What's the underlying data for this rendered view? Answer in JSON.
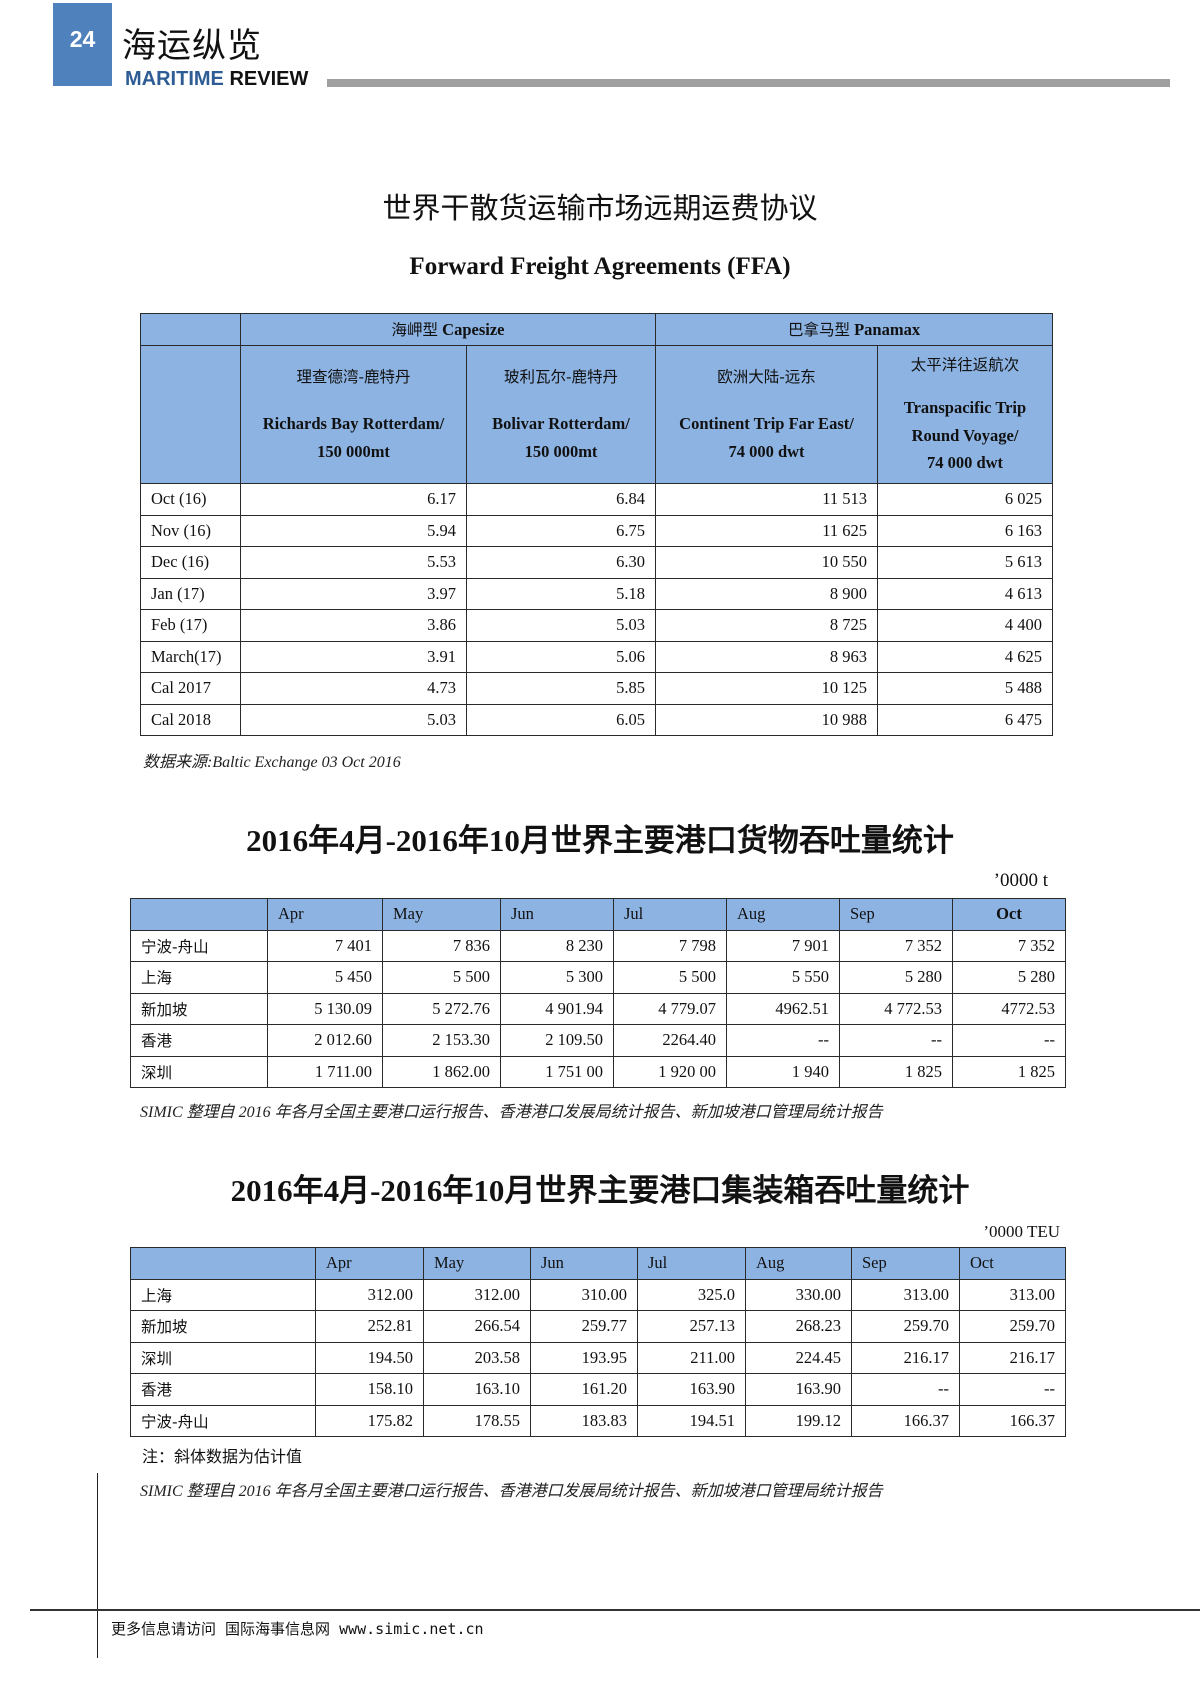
{
  "header": {
    "page_number": "24",
    "magazine_cn": "海运纵览",
    "magazine_en_1": "MARITIME",
    "magazine_en_2": " REVIEW",
    "brand_color": "#4f81bd"
  },
  "ffa": {
    "title_cn": "世界干散货运输市场远期运费协议",
    "title_en": "Forward Freight Agreements (FFA)",
    "groups": [
      {
        "cn": "海岬型",
        "en": " Capesize"
      },
      {
        "cn": "巴拿马型",
        "en": " Panamax"
      }
    ],
    "routes": [
      {
        "cn": "理查德湾-鹿特丹",
        "en1": "Richards Bay Rotterdam/",
        "en2": "150 000mt"
      },
      {
        "cn": "玻利瓦尔-鹿特丹",
        "en1": "Bolivar Rotterdam/",
        "en2": "150 000mt"
      },
      {
        "cn": "欧洲大陆-远东",
        "en1": "Continent Trip Far East/",
        "en2": "74 000 dwt"
      },
      {
        "cn": "太平洋往返航次",
        "en1": "Transpacific Trip",
        "en2": "Round Voyage/",
        "en3": "74 000 dwt"
      }
    ],
    "rows": [
      [
        "Oct (16)",
        "6.17",
        "6.84",
        "11 513",
        "6 025"
      ],
      [
        "Nov (16)",
        "5.94",
        "6.75",
        "11 625",
        "6 163"
      ],
      [
        "Dec (16)",
        "5.53",
        "6.30",
        "10 550",
        "5 613"
      ],
      [
        "Jan (17)",
        "3.97",
        "5.18",
        "8 900",
        "4 613"
      ],
      [
        "Feb (17)",
        "3.86",
        "5.03",
        "8 725",
        "4 400"
      ],
      [
        "March(17)",
        "3.91",
        "5.06",
        "8 963",
        "4 625"
      ],
      [
        "Cal 2017",
        "4.73",
        "5.85",
        "10 125",
        "5 488"
      ],
      [
        "Cal 2018",
        "5.03",
        "6.05",
        "10 988",
        "6 475"
      ]
    ],
    "source": "数据来源:Baltic Exchange 03 Oct 2016"
  },
  "cargo": {
    "title": "2016年4月-2016年10月世界主要港口货物吞吐量统计",
    "unit": "’0000  t",
    "columns": [
      "",
      "Apr",
      "May",
      "Jun",
      "Jul",
      "Aug",
      "Sep",
      "Oct"
    ],
    "rows": [
      [
        "宁波-舟山",
        "7 401",
        "7 836",
        "8 230",
        "7 798",
        "7 901",
        "7 352",
        "7  352"
      ],
      [
        "上海",
        "5 450",
        "5 500",
        "5 300",
        "5 500",
        "5 550",
        "5 280",
        "5  280"
      ],
      [
        "新加坡",
        "5 130.09",
        "5 272.76",
        "4 901.94",
        "4 779.07",
        "4962.51",
        "4 772.53",
        "4772.53"
      ],
      [
        "香港",
        "2 012.60",
        "2 153.30",
        "2 109.50",
        "2264.40",
        "--",
        "--",
        "--"
      ],
      [
        "深圳",
        "1 711.00",
        "1 862.00",
        "1 751 00",
        "1 920 00",
        "1 940",
        "1 825",
        "1  825"
      ]
    ],
    "source": "SIMIC 整理自 2016 年各月全国主要港口运行报告、香港港口发展局统计报告、新加坡港口管理局统计报告"
  },
  "teu": {
    "title": "2016年4月-2016年10月世界主要港口集装箱吞吐量统计",
    "unit": "’0000 TEU",
    "columns": [
      "",
      "Apr",
      "May",
      "Jun",
      "Jul",
      "Aug",
      "Sep",
      "Oct"
    ],
    "rows": [
      [
        "上海",
        "312.00",
        "312.00",
        "310.00",
        "325.0",
        "330.00",
        "313.00",
        "313.00"
      ],
      [
        "新加坡",
        "252.81",
        "266.54",
        "259.77",
        "257.13",
        "268.23",
        "259.70",
        "259.70"
      ],
      [
        "深圳",
        "194.50",
        "203.58",
        "193.95",
        "211.00",
        "224.45",
        "216.17",
        "216.17"
      ],
      [
        "香港",
        "158.10",
        "163.10",
        "161.20",
        "163.90",
        "163.90",
        "--",
        "--"
      ],
      [
        "宁波-舟山",
        "175.82",
        "178.55",
        "183.83",
        "194.51",
        "199.12",
        "166.37",
        "166.37"
      ]
    ],
    "note": "注：斜体数据为估计值",
    "source": "SIMIC 整理自 2016 年各月全国主要港口运行报告、香港港口发展局统计报告、新加坡港口管理局统计报告"
  },
  "footer": {
    "text": "更多信息请访问 国际海事信息网 www.simic.net.cn"
  }
}
